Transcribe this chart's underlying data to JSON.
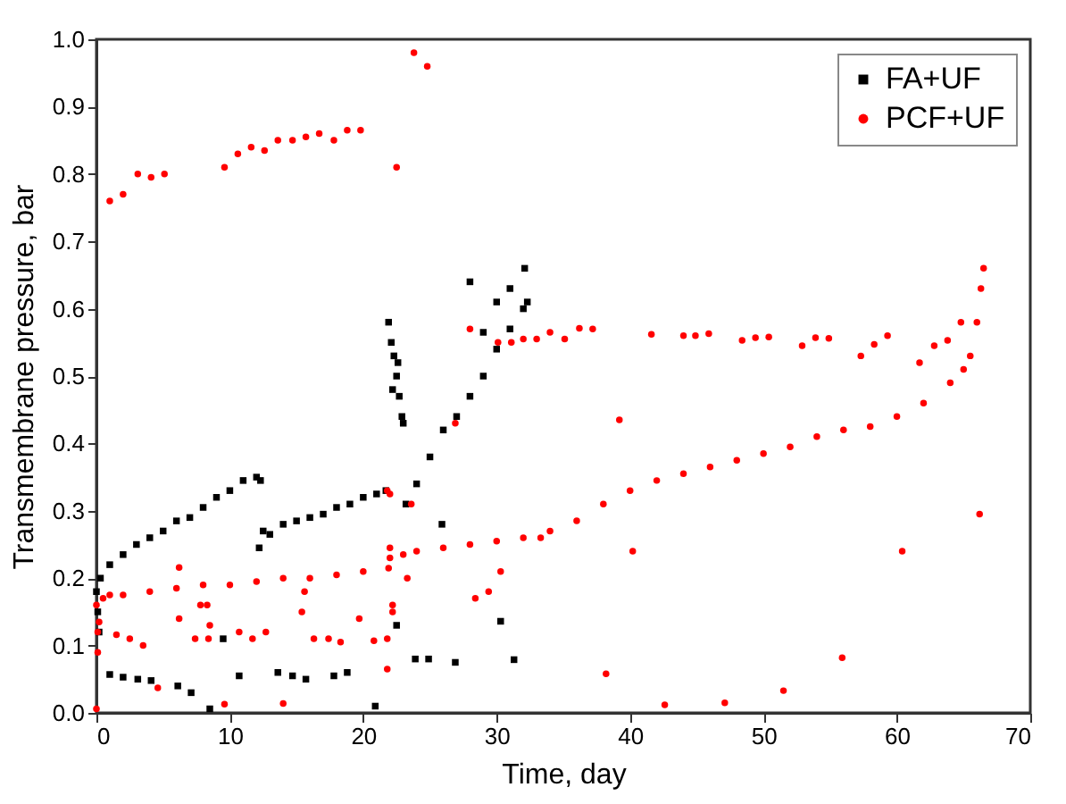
{
  "chart_data": {
    "type": "scatter",
    "xlabel": "Time, day",
    "ylabel": "Transmembrane pressure, bar",
    "xlim": [
      0,
      70
    ],
    "xticks": [
      0,
      10,
      20,
      30,
      40,
      50,
      60,
      70
    ],
    "ylim": [
      0,
      1
    ],
    "yticks": [
      {
        "value": 0,
        "label": "0.0"
      },
      {
        "value": 0.1,
        "label": "0.1"
      },
      {
        "value": 0.2,
        "label": "0.2"
      },
      {
        "value": 0.3,
        "label": "0.3"
      },
      {
        "value": 0.4,
        "label": "0.4"
      },
      {
        "value": 0.5,
        "label": "0.5"
      },
      {
        "value": 0.6,
        "label": "0.6"
      },
      {
        "value": 0.7,
        "label": "0.7"
      },
      {
        "value": 0.8,
        "label": "0.8"
      },
      {
        "value": 0.9,
        "label": "0.9"
      },
      {
        "value": 1,
        "label": "1.0"
      }
    ],
    "legend": "top right",
    "series": [
      {
        "name": "FA+UF",
        "color": "#000000",
        "marker": "square",
        "x": [
          0,
          0.1,
          0.2,
          0.3,
          1,
          2,
          3,
          4,
          5,
          6,
          7,
          8,
          9,
          10,
          11,
          12,
          12.3,
          12.5,
          13,
          14,
          15,
          16,
          17,
          18,
          19,
          20,
          21,
          21.7,
          21.9,
          22.1,
          22.3,
          22.5,
          22.2,
          22.6,
          22.7,
          22.9,
          23,
          23.2,
          24,
          25,
          26,
          27,
          28,
          29,
          30,
          31,
          32,
          32.3,
          28,
          32.1,
          31,
          30,
          29,
          1,
          2,
          3.1,
          4.1,
          6.1,
          7.1,
          8.5,
          9.5,
          10.7,
          12.2,
          13.6,
          14.7,
          15.7,
          17.8,
          18.8,
          20.9,
          22.5,
          23.9,
          24.9,
          26.9,
          25.9,
          30.3,
          31.3
        ],
        "values": [
          0.18,
          0.15,
          0.12,
          0.2,
          0.22,
          0.235,
          0.25,
          0.26,
          0.27,
          0.285,
          0.29,
          0.305,
          0.32,
          0.33,
          0.345,
          0.35,
          0.345,
          0.27,
          0.265,
          0.28,
          0.285,
          0.29,
          0.295,
          0.305,
          0.31,
          0.32,
          0.325,
          0.33,
          0.58,
          0.55,
          0.53,
          0.5,
          0.48,
          0.52,
          0.47,
          0.44,
          0.43,
          0.31,
          0.34,
          0.38,
          0.42,
          0.44,
          0.47,
          0.5,
          0.54,
          0.57,
          0.6,
          0.61,
          0.64,
          0.66,
          0.63,
          0.61,
          0.565,
          0.057,
          0.053,
          0.05,
          0.048,
          0.04,
          0.03,
          0.006,
          0.11,
          0.055,
          0.245,
          0.06,
          0.055,
          0.05,
          0.055,
          0.06,
          0.01,
          0.13,
          0.08,
          0.08,
          0.075,
          0.28,
          0.136,
          0.079
        ]
      },
      {
        "name": "PCF+UF",
        "color": "#ff0000",
        "marker": "circle",
        "x": [
          0,
          0.5,
          1,
          2,
          4,
          6,
          8,
          10,
          12,
          14,
          16,
          18,
          20,
          21.9,
          22,
          23,
          24,
          26,
          28,
          30,
          32,
          34,
          36,
          38,
          40,
          42,
          44,
          46,
          48,
          50,
          52,
          54,
          56,
          58,
          60,
          62,
          64,
          65,
          65.5,
          66,
          66.3,
          66.5,
          1,
          2,
          3.1,
          4.1,
          5.1,
          9.6,
          10.6,
          11.6,
          12.6,
          13.6,
          14.7,
          15.7,
          16.7,
          17.8,
          18.8,
          19.8,
          22.5,
          23.8,
          24.8,
          28,
          30.1,
          31.1,
          32,
          33,
          34,
          35.1,
          36.2,
          37.2,
          41.6,
          44,
          44.9,
          45.9,
          48.4,
          49.4,
          50.4,
          52.9,
          53.9,
          54.9,
          57.3,
          58.3,
          59.3,
          61.7,
          62.8,
          63.8,
          64.8,
          39.2,
          40.2,
          60.4,
          66.2,
          38.2,
          42.6,
          47.1,
          51.5,
          55.9,
          6.2,
          6.2,
          7.8,
          8.3,
          8.5,
          1.5,
          2.5,
          3.5,
          4.6,
          7.4,
          8.4,
          10.7,
          11.7,
          12.7,
          9.6,
          14,
          15.4,
          15.6,
          16.3,
          17.4,
          18.3,
          19.7,
          20.8,
          21.8,
          21.8,
          22,
          22.2,
          22.2,
          23.3,
          23.6,
          26.9,
          28.4,
          29.4,
          30.3,
          33.3,
          0,
          0.1,
          0.1,
          0.2,
          21.8,
          22
        ],
        "values": [
          0.16,
          0.17,
          0.175,
          0.175,
          0.18,
          0.185,
          0.19,
          0.19,
          0.195,
          0.2,
          0.2,
          0.205,
          0.21,
          0.215,
          0.23,
          0.235,
          0.24,
          0.245,
          0.25,
          0.255,
          0.26,
          0.27,
          0.285,
          0.31,
          0.33,
          0.345,
          0.355,
          0.365,
          0.375,
          0.385,
          0.395,
          0.41,
          0.42,
          0.425,
          0.44,
          0.46,
          0.49,
          0.51,
          0.53,
          0.58,
          0.63,
          0.66,
          0.76,
          0.77,
          0.8,
          0.795,
          0.8,
          0.81,
          0.83,
          0.84,
          0.835,
          0.85,
          0.85,
          0.855,
          0.86,
          0.85,
          0.865,
          0.865,
          0.81,
          0.98,
          0.96,
          0.57,
          0.55,
          0.55,
          0.555,
          0.555,
          0.565,
          0.555,
          0.571,
          0.57,
          0.562,
          0.56,
          0.56,
          0.563,
          0.553,
          0.557,
          0.558,
          0.545,
          0.557,
          0.556,
          0.53,
          0.547,
          0.56,
          0.52,
          0.545,
          0.553,
          0.58,
          0.435,
          0.24,
          0.24,
          0.295,
          0.058,
          0.012,
          0.015,
          0.033,
          0.082,
          0.216,
          0.14,
          0.16,
          0.16,
          0.13,
          0.116,
          0.11,
          0.1,
          0.037,
          0.11,
          0.11,
          0.12,
          0.11,
          0.12,
          0.013,
          0.014,
          0.15,
          0.18,
          0.11,
          0.11,
          0.105,
          0.14,
          0.107,
          0.11,
          0.065,
          0.245,
          0.16,
          0.15,
          0.2,
          0.31,
          0.43,
          0.17,
          0.18,
          0.21,
          0.26,
          0.006,
          0.12,
          0.09,
          0.135,
          0.33,
          0.325
        ]
      }
    ]
  }
}
